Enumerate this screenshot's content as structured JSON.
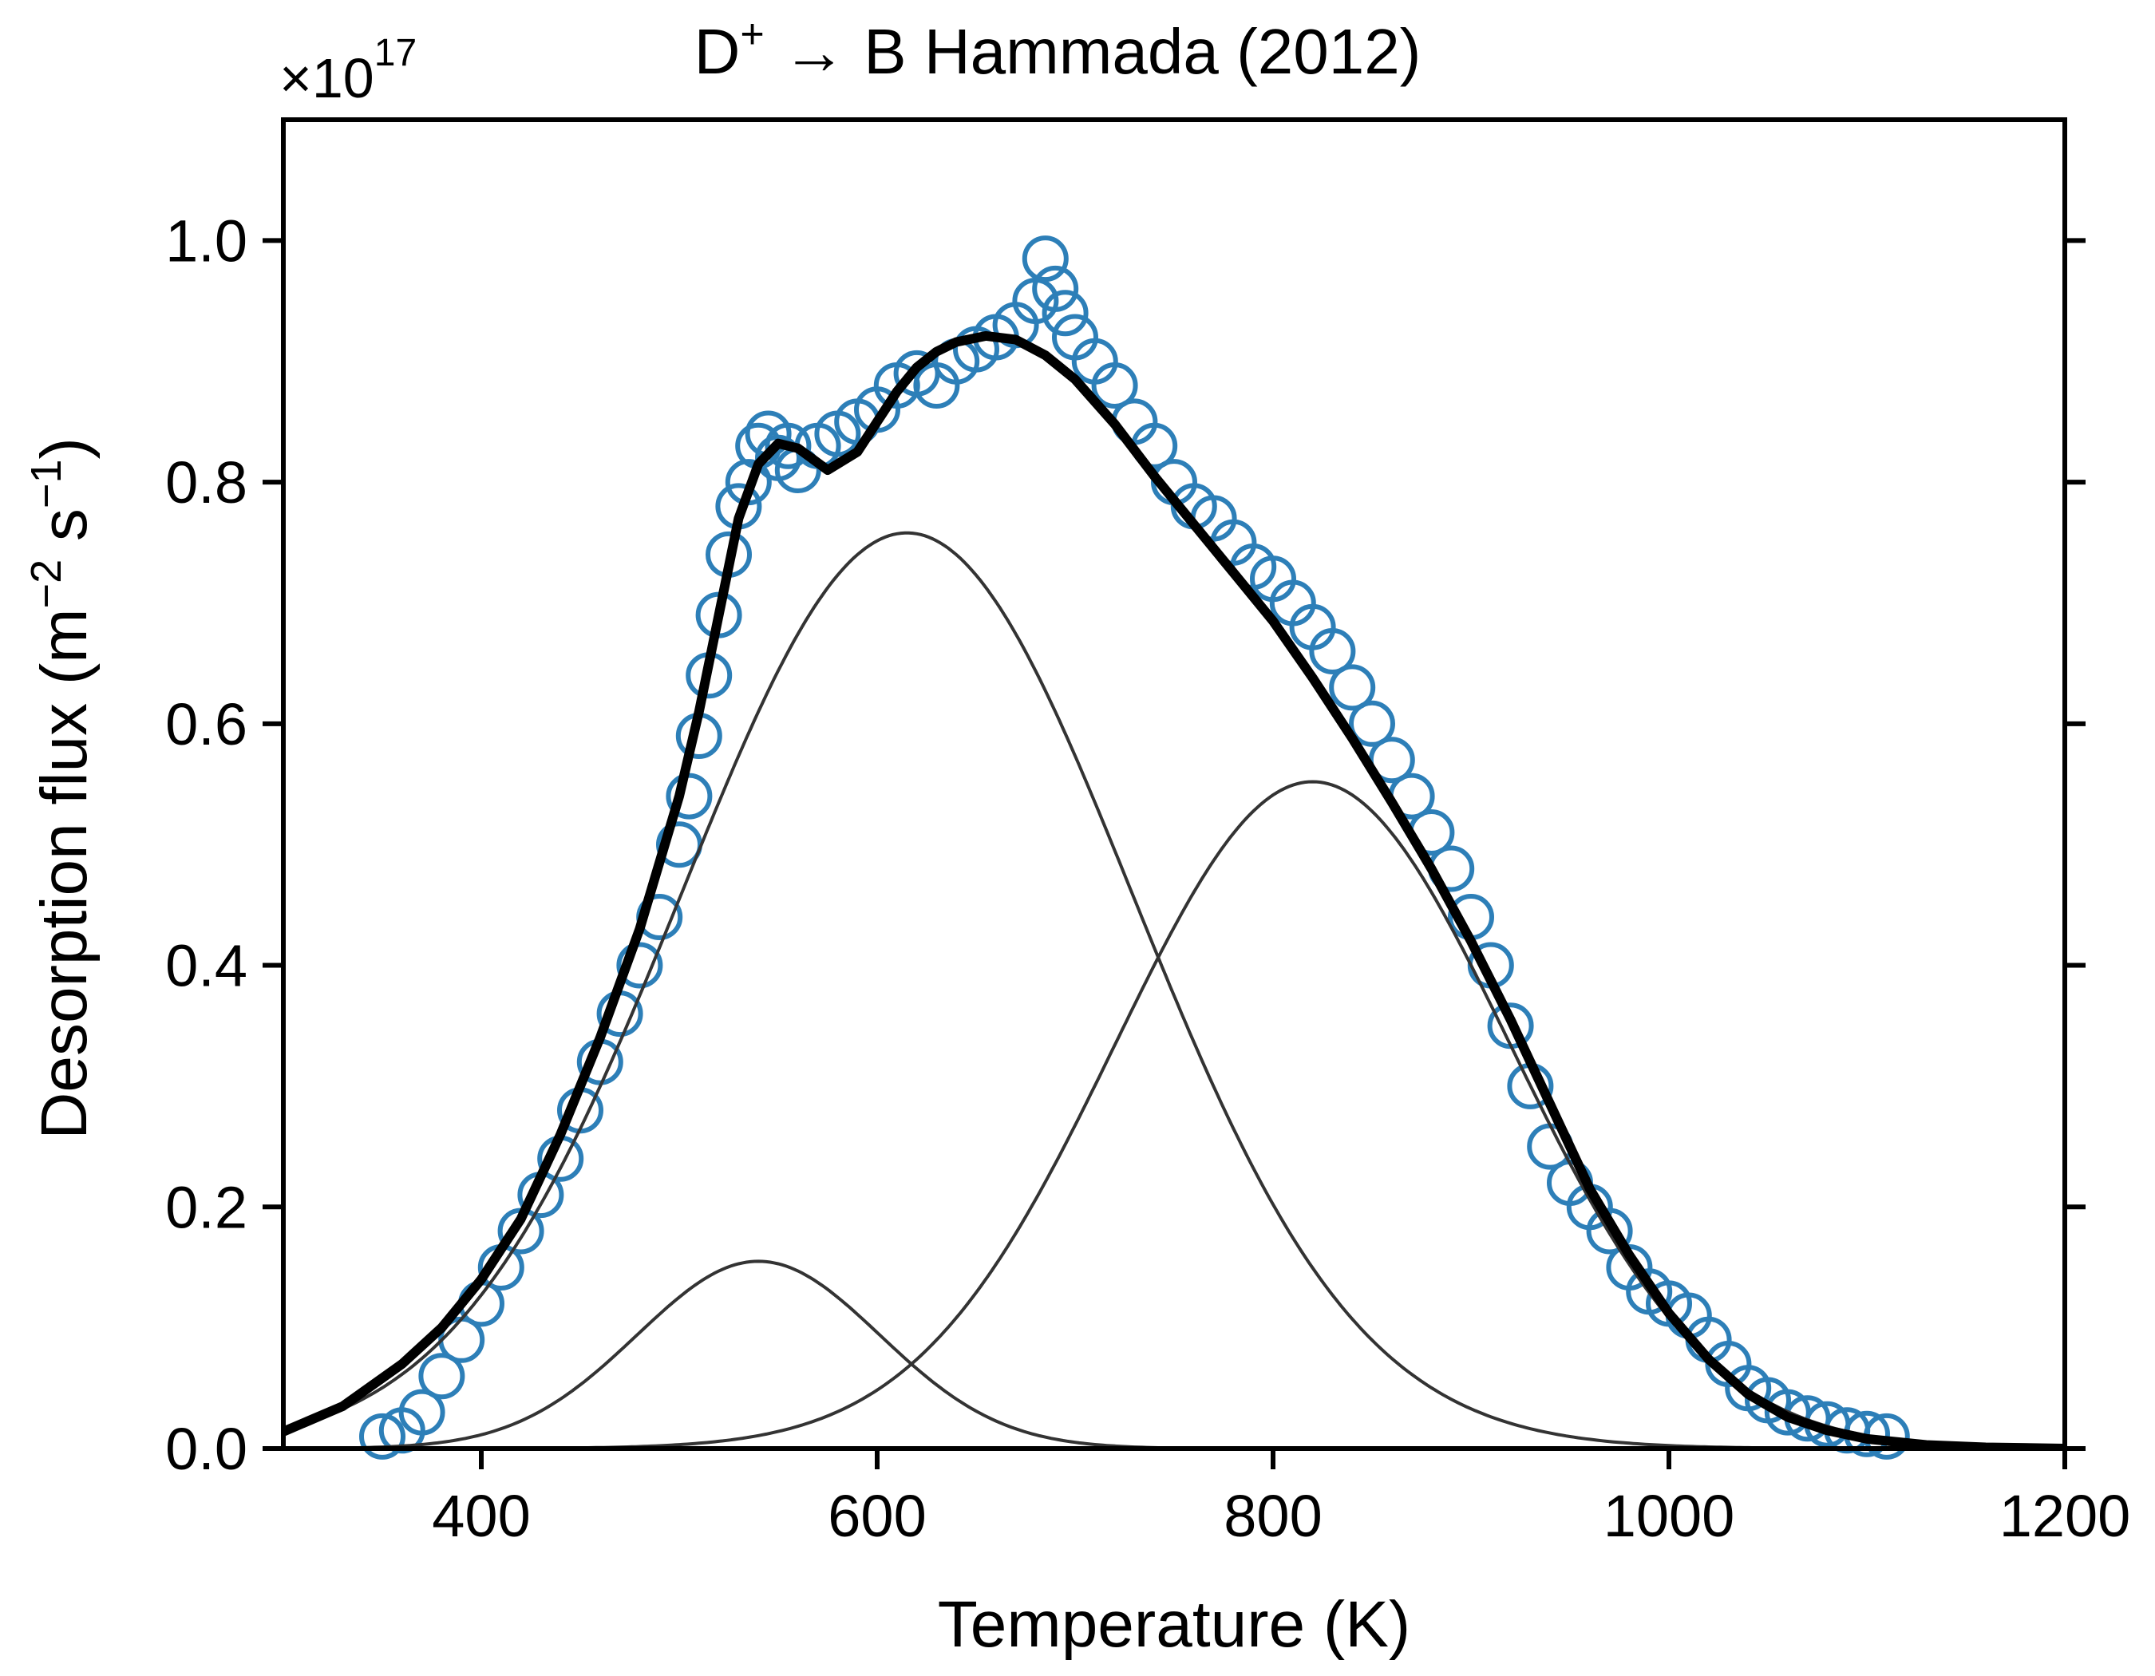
{
  "chart_data": {
    "type": "scatter",
    "title_main": "D",
    "title_sup": "+",
    "title_rest": " → B Hammada (2012)",
    "xlabel": "Temperature (K)",
    "ylabel_main": "Desorption flux (m",
    "ylabel_sup1": "−2",
    "ylabel_mid": " s",
    "ylabel_sup2": "−1",
    "ylabel_end": ")",
    "y_multiplier_base": "×10",
    "y_multiplier_exp": "17",
    "xlim": [
      300,
      1200
    ],
    "ylim": [
      0,
      1.1
    ],
    "x_ticks": [
      400,
      600,
      800,
      1000,
      1200
    ],
    "x_tick_labels": [
      "400",
      "600",
      "800",
      "1000",
      "1200"
    ],
    "y_ticks": [
      0.0,
      0.2,
      0.4,
      0.6,
      0.8,
      1.0
    ],
    "y_tick_labels": [
      "0.0",
      "0.2",
      "0.4",
      "0.6",
      "0.8",
      "1.0"
    ],
    "grid": false,
    "colors": {
      "markers": "#2d7fb8",
      "total_fit": "#000000",
      "components": "#333333"
    },
    "components": [
      {
        "peak_x": 540,
        "peak_y": 0.155
      },
      {
        "peak_x": 615,
        "peak_y": 0.758
      },
      {
        "peak_x": 820,
        "peak_y": 0.552
      }
    ],
    "total_fit": {
      "x": [
        300,
        330,
        360,
        380,
        400,
        420,
        440,
        460,
        480,
        500,
        510,
        520,
        530,
        540,
        550,
        560,
        575,
        590,
        600,
        610,
        620,
        630,
        640,
        655,
        670,
        685,
        700,
        720,
        740,
        760,
        780,
        800,
        820,
        840,
        860,
        880,
        900,
        920,
        940,
        960,
        980,
        1000,
        1020,
        1040,
        1060,
        1080,
        1100,
        1130,
        1160,
        1200
      ],
      "y": [
        0.014,
        0.035,
        0.07,
        0.1,
        0.14,
        0.19,
        0.26,
        0.34,
        0.43,
        0.54,
        0.61,
        0.69,
        0.77,
        0.815,
        0.832,
        0.828,
        0.81,
        0.825,
        0.85,
        0.875,
        0.895,
        0.908,
        0.916,
        0.921,
        0.918,
        0.905,
        0.885,
        0.848,
        0.805,
        0.765,
        0.725,
        0.685,
        0.638,
        0.588,
        0.535,
        0.48,
        0.42,
        0.355,
        0.285,
        0.215,
        0.16,
        0.112,
        0.074,
        0.045,
        0.026,
        0.015,
        0.008,
        0.003,
        0.001,
        0.0
      ]
    },
    "measured": {
      "x": [
        350,
        360,
        370,
        380,
        390,
        400,
        410,
        420,
        430,
        440,
        450,
        460,
        470,
        480,
        490,
        500,
        505,
        510,
        515,
        520,
        525,
        530,
        535,
        540,
        545,
        550,
        555,
        560,
        570,
        580,
        590,
        600,
        610,
        620,
        630,
        640,
        650,
        660,
        670,
        680,
        685,
        690,
        695,
        700,
        710,
        720,
        730,
        740,
        750,
        760,
        770,
        780,
        790,
        800,
        810,
        820,
        830,
        840,
        850,
        860,
        870,
        880,
        890,
        900,
        910,
        920,
        930,
        940,
        950,
        960,
        970,
        980,
        990,
        1000,
        1010,
        1020,
        1030,
        1040,
        1050,
        1060,
        1070,
        1080,
        1090,
        1100,
        1110
      ],
      "y": [
        0.01,
        0.015,
        0.03,
        0.06,
        0.09,
        0.12,
        0.15,
        0.18,
        0.21,
        0.24,
        0.28,
        0.32,
        0.36,
        0.4,
        0.44,
        0.5,
        0.54,
        0.59,
        0.64,
        0.69,
        0.74,
        0.78,
        0.8,
        0.83,
        0.84,
        0.82,
        0.83,
        0.81,
        0.83,
        0.84,
        0.85,
        0.86,
        0.88,
        0.89,
        0.88,
        0.9,
        0.91,
        0.92,
        0.93,
        0.95,
        0.985,
        0.96,
        0.94,
        0.92,
        0.9,
        0.88,
        0.85,
        0.83,
        0.8,
        0.78,
        0.77,
        0.75,
        0.73,
        0.72,
        0.7,
        0.68,
        0.66,
        0.63,
        0.6,
        0.57,
        0.54,
        0.51,
        0.48,
        0.44,
        0.4,
        0.35,
        0.3,
        0.25,
        0.22,
        0.2,
        0.18,
        0.15,
        0.13,
        0.12,
        0.11,
        0.09,
        0.07,
        0.05,
        0.04,
        0.03,
        0.025,
        0.02,
        0.015,
        0.012,
        0.01
      ]
    }
  }
}
